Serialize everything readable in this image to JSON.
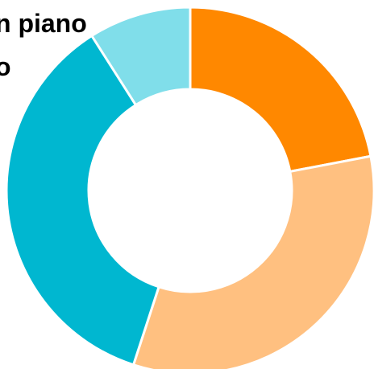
{
  "chart_data": {
    "type": "pie",
    "variant": "donut",
    "title_lines": [
      "n piano",
      "o"
    ],
    "slices": [
      {
        "value": 22,
        "color": "#FF8800"
      },
      {
        "value": 33,
        "color": "#FFC080"
      },
      {
        "value": 36,
        "color": "#00B7D0"
      },
      {
        "value": 9,
        "color": "#80DEEA"
      }
    ],
    "legend": "none"
  }
}
